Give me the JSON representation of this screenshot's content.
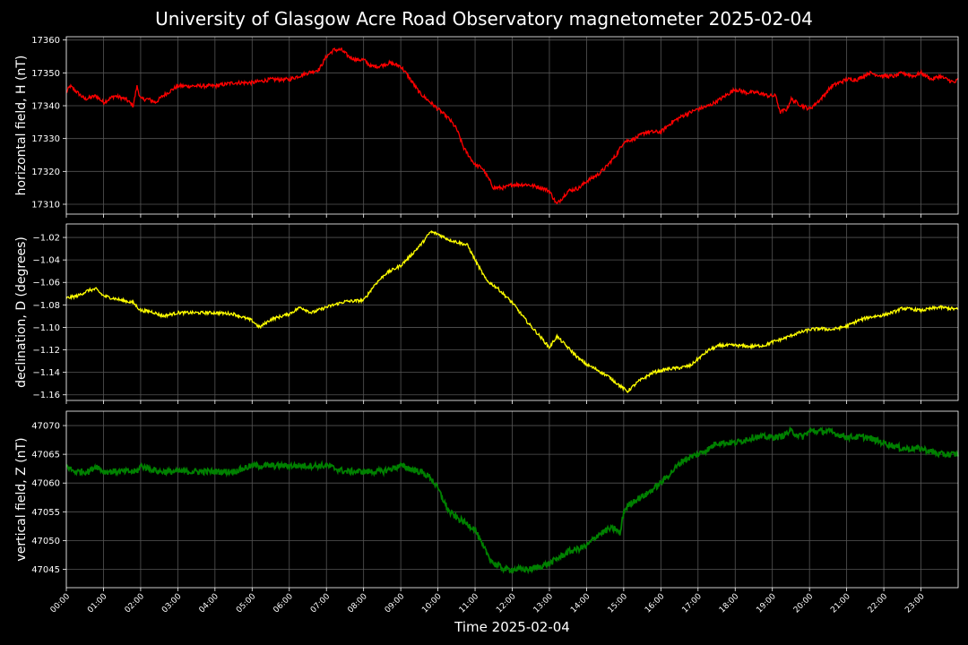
{
  "title": "University of Glasgow Acre Road Observatory magnetometer 2025-02-04",
  "xlabel": "Time 2025-02-04",
  "colors": {
    "background": "#000000",
    "grid": "#555555",
    "axis": "#ffffff",
    "text": "#ffffff"
  },
  "chart_data": [
    {
      "type": "line",
      "id": "H",
      "ylabel": "horizontal field, H (nT)",
      "color": "#ff0000",
      "ylim": [
        17307,
        17361
      ],
      "yticks": [
        17310,
        17320,
        17330,
        17340,
        17350,
        17360
      ],
      "xlim": [
        0,
        24
      ],
      "xticks": [
        "00:00",
        "01:00",
        "02:00",
        "03:00",
        "04:00",
        "05:00",
        "06:00",
        "07:00",
        "08:00",
        "09:00",
        "10:00",
        "11:00",
        "12:00",
        "13:00",
        "14:00",
        "15:00",
        "16:00",
        "17:00",
        "18:00",
        "19:00",
        "20:00",
        "21:00",
        "22:00",
        "23:00"
      ],
      "grid": true,
      "noise": 0.6,
      "x": [
        0,
        0.1,
        0.2,
        0.3,
        0.5,
        0.8,
        1.0,
        1.3,
        1.6,
        1.8,
        1.9,
        2.0,
        2.2,
        2.4,
        2.6,
        3.0,
        3.5,
        4.0,
        4.5,
        5.0,
        5.5,
        6.0,
        6.5,
        6.8,
        7.0,
        7.2,
        7.4,
        7.6,
        7.8,
        8.0,
        8.2,
        8.4,
        8.7,
        9.0,
        9.2,
        9.5,
        9.8,
        10.0,
        10.3,
        10.5,
        10.7,
        11.0,
        11.2,
        11.5,
        11.8,
        12.0,
        12.4,
        12.8,
        13.0,
        13.2,
        13.5,
        13.8,
        14.0,
        14.3,
        14.5,
        14.8,
        15.0,
        15.3,
        15.6,
        16.0,
        16.3,
        16.6,
        17.0,
        17.3,
        17.6,
        18.0,
        18.3,
        18.6,
        18.9,
        19.1,
        19.2,
        19.4,
        19.5,
        19.8,
        20.0,
        20.3,
        20.6,
        21.0,
        21.3,
        21.6,
        22.0,
        22.3,
        22.5,
        22.8,
        23.0,
        23.3,
        23.5,
        23.7,
        23.9,
        24.0
      ],
      "y": [
        17344,
        17346,
        17345,
        17344,
        17342,
        17343,
        17341,
        17343,
        17342,
        17340,
        17346,
        17342,
        17342,
        17341,
        17343,
        17346,
        17346,
        17346,
        17347,
        17347,
        17348,
        17348,
        17350,
        17351,
        17355,
        17357,
        17357,
        17355,
        17354,
        17354,
        17352,
        17352,
        17353,
        17352,
        17349,
        17344,
        17341,
        17339,
        17336,
        17333,
        17327,
        17322,
        17321,
        17315,
        17315,
        17316,
        17316,
        17315,
        17314,
        17310,
        17314,
        17315,
        17317,
        17319,
        17321,
        17325,
        17329,
        17330,
        17332,
        17332,
        17335,
        17337,
        17339,
        17340,
        17342,
        17345,
        17344,
        17344,
        17343,
        17343,
        17338,
        17339,
        17342,
        17340,
        17339,
        17342,
        17346,
        17348,
        17348,
        17350,
        17349,
        17349,
        17350,
        17349,
        17350,
        17348,
        17349,
        17348,
        17347,
        17348
      ]
    },
    {
      "type": "line",
      "id": "D",
      "ylabel": "declination, D (degrees)",
      "color": "#ffff00",
      "ylim": [
        -1.165,
        -1.008
      ],
      "yticks": [
        -1.16,
        -1.14,
        -1.12,
        -1.1,
        -1.08,
        -1.06,
        -1.04,
        -1.02
      ],
      "xlim": [
        0,
        24
      ],
      "grid": true,
      "noise": 0.0014,
      "x": [
        0,
        0.3,
        0.6,
        0.8,
        1.0,
        1.5,
        1.8,
        2.0,
        2.3,
        2.6,
        3.0,
        3.5,
        4.0,
        4.5,
        5.0,
        5.2,
        5.5,
        6.0,
        6.3,
        6.6,
        7.0,
        7.5,
        8.0,
        8.3,
        8.6,
        9.0,
        9.3,
        9.6,
        9.8,
        10.0,
        10.3,
        10.6,
        10.8,
        11.0,
        11.3,
        11.6,
        12.0,
        12.4,
        12.8,
        13.0,
        13.2,
        13.5,
        13.8,
        14.0,
        14.3,
        14.6,
        14.9,
        15.1,
        15.4,
        15.8,
        16.2,
        16.5,
        16.8,
        17.0,
        17.3,
        17.6,
        18.0,
        18.4,
        18.8,
        19.0,
        19.3,
        19.6,
        19.8,
        20.0,
        20.3,
        20.6,
        21.0,
        21.3,
        21.6,
        22.0,
        22.3,
        22.5,
        22.8,
        23.0,
        23.5,
        24.0
      ],
      "y": [
        -1.074,
        -1.072,
        -1.067,
        -1.066,
        -1.072,
        -1.076,
        -1.078,
        -1.085,
        -1.086,
        -1.09,
        -1.087,
        -1.087,
        -1.087,
        -1.088,
        -1.094,
        -1.1,
        -1.093,
        -1.088,
        -1.082,
        -1.087,
        -1.082,
        -1.077,
        -1.076,
        -1.062,
        -1.052,
        -1.045,
        -1.035,
        -1.024,
        -1.015,
        -1.017,
        -1.022,
        -1.025,
        -1.027,
        -1.04,
        -1.058,
        -1.065,
        -1.078,
        -1.095,
        -1.11,
        -1.118,
        -1.108,
        -1.118,
        -1.128,
        -1.133,
        -1.138,
        -1.144,
        -1.152,
        -1.157,
        -1.148,
        -1.14,
        -1.137,
        -1.136,
        -1.134,
        -1.128,
        -1.12,
        -1.116,
        -1.116,
        -1.117,
        -1.116,
        -1.113,
        -1.11,
        -1.106,
        -1.104,
        -1.102,
        -1.101,
        -1.102,
        -1.099,
        -1.094,
        -1.091,
        -1.089,
        -1.086,
        -1.083,
        -1.084,
        -1.085,
        -1.082,
        -1.084
      ]
    },
    {
      "type": "line",
      "id": "Z",
      "ylabel": "vertical field, Z (nT)",
      "color": "#008000",
      "ylim": [
        47041.8,
        47072.5
      ],
      "yticks": [
        47045,
        47050,
        47055,
        47060,
        47065,
        47070
      ],
      "xlim": [
        0,
        24
      ],
      "grid": true,
      "noise": 0.55,
      "x": [
        0,
        0.2,
        0.4,
        0.6,
        0.8,
        1.0,
        1.5,
        1.9,
        2.0,
        2.5,
        3.0,
        3.5,
        4.0,
        4.5,
        5.0,
        5.5,
        6.0,
        6.5,
        7.0,
        7.5,
        8.0,
        8.5,
        9.0,
        9.5,
        9.8,
        10.0,
        10.3,
        10.5,
        11.0,
        11.2,
        11.5,
        11.8,
        12.0,
        12.5,
        13.0,
        13.5,
        14.0,
        14.3,
        14.6,
        14.8,
        14.9,
        15.0,
        15.1,
        15.3,
        15.6,
        16.0,
        16.3,
        16.6,
        17.0,
        17.3,
        17.5,
        18.0,
        18.5,
        19.0,
        19.2,
        19.5,
        19.8,
        20.0,
        20.5,
        21.0,
        21.5,
        22.0,
        22.5,
        23.0,
        23.5,
        24.0
      ],
      "y": [
        47063,
        47062,
        47062,
        47062,
        47063,
        47062,
        47062,
        47062,
        47063,
        47062,
        47062,
        47062,
        47062,
        47062,
        47063,
        47063,
        47063,
        47063,
        47063,
        47062,
        47062,
        47062,
        47063,
        47062,
        47061,
        47059,
        47055,
        47054,
        47052,
        47049,
        47046,
        47045,
        47045,
        47045,
        47046,
        47048,
        47049,
        47051,
        47052,
        47052,
        47051,
        47055,
        47056,
        47057,
        47058,
        47060,
        47062,
        47064,
        47065,
        47066,
        47067,
        47067,
        47068,
        47068,
        47068,
        47069,
        47068,
        47069,
        47069,
        47068,
        47068,
        47067,
        47066,
        47066,
        47065,
        47065
      ]
    }
  ]
}
